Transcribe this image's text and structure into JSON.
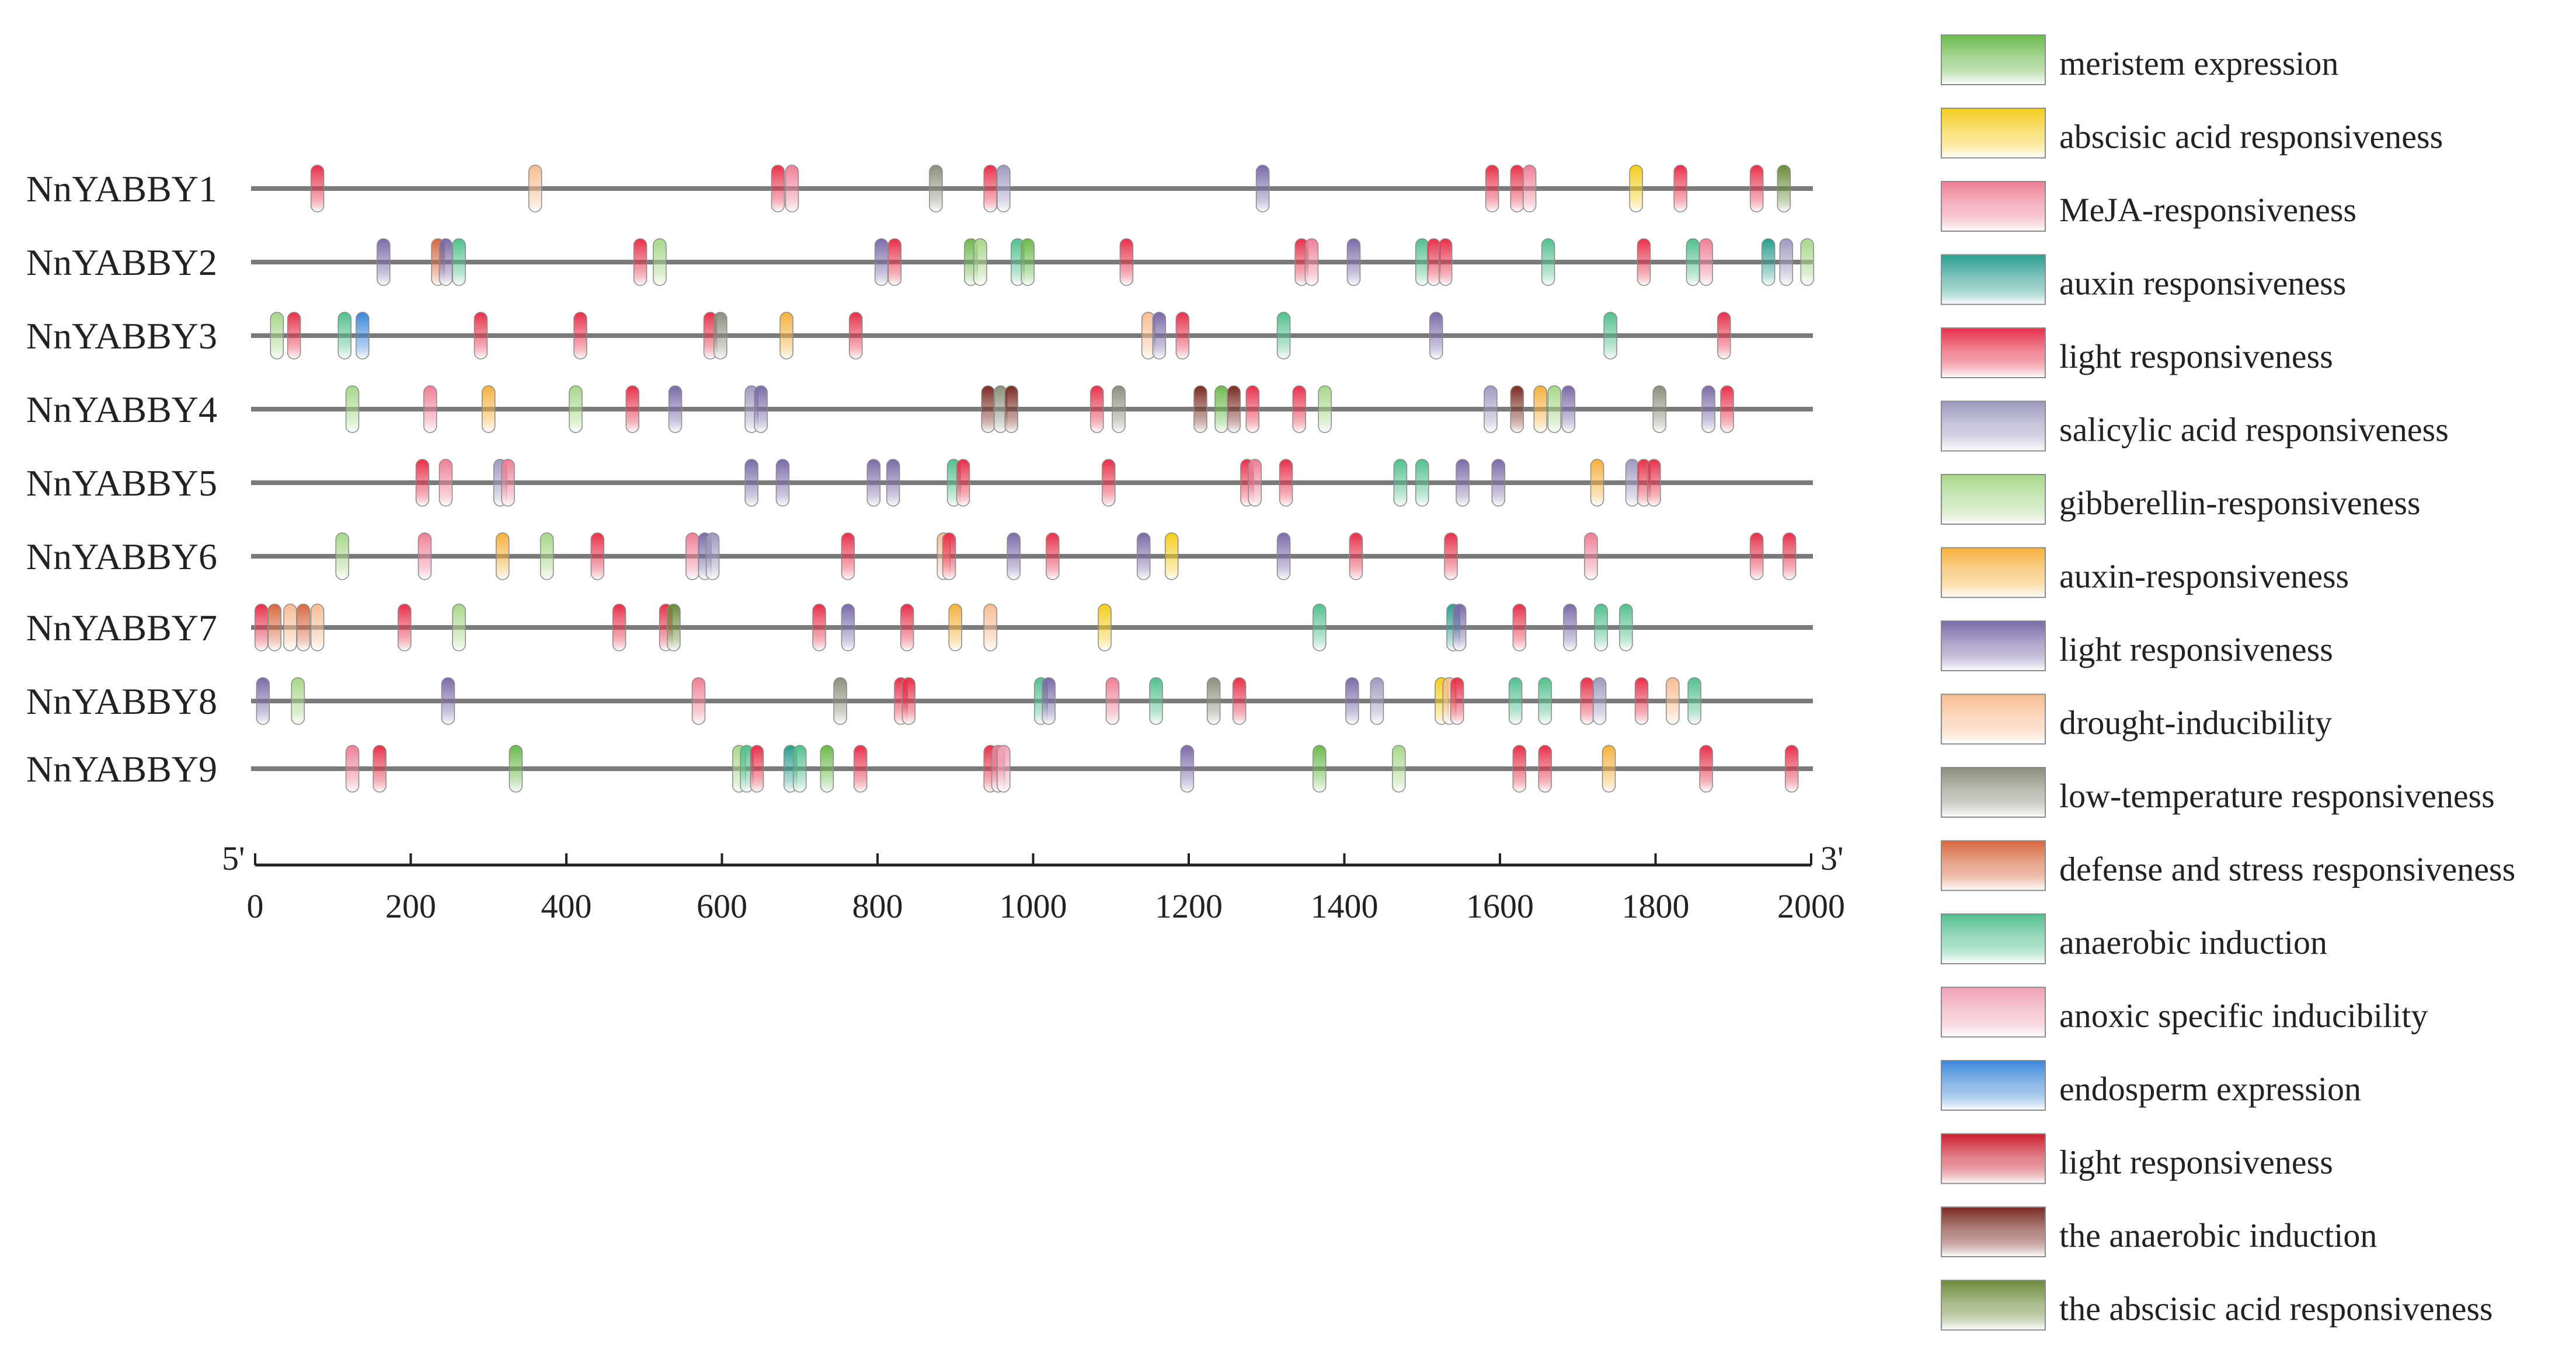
{
  "chart_data": {
    "type": "element-map",
    "title": "",
    "xlabel": "",
    "ylabel": "",
    "xlim": [
      0,
      2000
    ],
    "x_ticks": [
      "0",
      "200",
      "400",
      "600",
      "800",
      "1000",
      "1200",
      "1400",
      "1600",
      "1800",
      "2000"
    ],
    "axis_start_label": "5'",
    "axis_end_label": "3'",
    "legend_position": "right",
    "legend": [
      {
        "key": "meristem",
        "label": "meristem expression",
        "color": "#6cba4c"
      },
      {
        "key": "aba",
        "label": "abscisic acid responsiveness",
        "color": "#f5cd1c"
      },
      {
        "key": "meja",
        "label": "MeJA-responsiveness",
        "color": "#ef7f96"
      },
      {
        "key": "auxin",
        "label": "auxin responsiveness",
        "color": "#2a9d8f"
      },
      {
        "key": "light1",
        "label": "light responsiveness",
        "color": "#e8304a"
      },
      {
        "key": "sa",
        "label": "salicylic acid responsiveness",
        "color": "#9e9ac0"
      },
      {
        "key": "ga",
        "label": "gibberellin-responsiveness",
        "color": "#a8d78a"
      },
      {
        "key": "auxin2",
        "label": "auxin-responsiveness",
        "color": "#f6b13e"
      },
      {
        "key": "light2",
        "label": "light responsiveness",
        "color": "#7a6aa8"
      },
      {
        "key": "drought",
        "label": "drought-inducibility",
        "color": "#f8bd92"
      },
      {
        "key": "lowtemp",
        "label": "low-temperature responsiveness",
        "color": "#8b8f7c"
      },
      {
        "key": "defense",
        "label": "defense and stress responsiveness",
        "color": "#d8683f"
      },
      {
        "key": "anaerobic",
        "label": "anaerobic induction",
        "color": "#52c08e"
      },
      {
        "key": "anoxic",
        "label": "anoxic specific inducibility",
        "color": "#f1a1b6"
      },
      {
        "key": "endosperm",
        "label": "endosperm expression",
        "color": "#3a86d9"
      },
      {
        "key": "light3",
        "label": "light responsiveness",
        "color": "#cc1f30"
      },
      {
        "key": "anaerobic2",
        "label": "the anaerobic induction",
        "color": "#7a2a22"
      },
      {
        "key": "aba2",
        "label": "the abscisic acid responsiveness",
        "color": "#6b8a3a"
      }
    ],
    "series": [
      {
        "name": "NnYABBY1",
        "elements": [
          {
            "pos": 80,
            "type": "light1"
          },
          {
            "pos": 360,
            "type": "drought"
          },
          {
            "pos": 672,
            "type": "light1"
          },
          {
            "pos": 690,
            "type": "meja"
          },
          {
            "pos": 875,
            "type": "lowtemp"
          },
          {
            "pos": 945,
            "type": "light1"
          },
          {
            "pos": 962,
            "type": "sa"
          },
          {
            "pos": 1295,
            "type": "light2"
          },
          {
            "pos": 1590,
            "type": "light1"
          },
          {
            "pos": 1622,
            "type": "light1"
          },
          {
            "pos": 1638,
            "type": "meja"
          },
          {
            "pos": 1775,
            "type": "aba"
          },
          {
            "pos": 1832,
            "type": "light1"
          },
          {
            "pos": 1930,
            "type": "light1"
          },
          {
            "pos": 1965,
            "type": "aba2"
          }
        ]
      },
      {
        "name": "NnYABBY2",
        "elements": [
          {
            "pos": 165,
            "type": "light2"
          },
          {
            "pos": 235,
            "type": "defense"
          },
          {
            "pos": 245,
            "type": "light2"
          },
          {
            "pos": 262,
            "type": "anaerobic"
          },
          {
            "pos": 495,
            "type": "light1"
          },
          {
            "pos": 520,
            "type": "ga"
          },
          {
            "pos": 805,
            "type": "light2"
          },
          {
            "pos": 822,
            "type": "light1"
          },
          {
            "pos": 920,
            "type": "meristem"
          },
          {
            "pos": 932,
            "type": "ga"
          },
          {
            "pos": 980,
            "type": "anaerobic"
          },
          {
            "pos": 993,
            "type": "meristem"
          },
          {
            "pos": 1120,
            "type": "light1"
          },
          {
            "pos": 1345,
            "type": "light1"
          },
          {
            "pos": 1358,
            "type": "meja"
          },
          {
            "pos": 1412,
            "type": "light2"
          },
          {
            "pos": 1500,
            "type": "anaerobic"
          },
          {
            "pos": 1515,
            "type": "light1"
          },
          {
            "pos": 1530,
            "type": "light1"
          },
          {
            "pos": 1662,
            "type": "anaerobic"
          },
          {
            "pos": 1785,
            "type": "light1"
          },
          {
            "pos": 1848,
            "type": "anaerobic"
          },
          {
            "pos": 1865,
            "type": "meja"
          },
          {
            "pos": 1945,
            "type": "auxin"
          },
          {
            "pos": 1968,
            "type": "sa"
          },
          {
            "pos": 1995,
            "type": "ga"
          }
        ]
      },
      {
        "name": "NnYABBY3",
        "elements": [
          {
            "pos": 28,
            "type": "ga"
          },
          {
            "pos": 50,
            "type": "light1"
          },
          {
            "pos": 115,
            "type": "anaerobic"
          },
          {
            "pos": 138,
            "type": "endosperm"
          },
          {
            "pos": 290,
            "type": "light1"
          },
          {
            "pos": 418,
            "type": "light1"
          },
          {
            "pos": 585,
            "type": "light1"
          },
          {
            "pos": 598,
            "type": "lowtemp"
          },
          {
            "pos": 683,
            "type": "auxin2"
          },
          {
            "pos": 772,
            "type": "light1"
          },
          {
            "pos": 1148,
            "type": "drought"
          },
          {
            "pos": 1162,
            "type": "light2"
          },
          {
            "pos": 1192,
            "type": "light1"
          },
          {
            "pos": 1322,
            "type": "anaerobic"
          },
          {
            "pos": 1518,
            "type": "light2"
          },
          {
            "pos": 1742,
            "type": "anaerobic"
          },
          {
            "pos": 1888,
            "type": "light1"
          }
        ]
      },
      {
        "name": "NnYABBY4",
        "elements": [
          {
            "pos": 125,
            "type": "ga"
          },
          {
            "pos": 225,
            "type": "meja"
          },
          {
            "pos": 300,
            "type": "auxin2"
          },
          {
            "pos": 412,
            "type": "ga"
          },
          {
            "pos": 485,
            "type": "light1"
          },
          {
            "pos": 540,
            "type": "light2"
          },
          {
            "pos": 638,
            "type": "sa"
          },
          {
            "pos": 650,
            "type": "light2"
          },
          {
            "pos": 942,
            "type": "anaerobic2"
          },
          {
            "pos": 958,
            "type": "lowtemp"
          },
          {
            "pos": 972,
            "type": "anaerobic2"
          },
          {
            "pos": 1082,
            "type": "light1"
          },
          {
            "pos": 1110,
            "type": "lowtemp"
          },
          {
            "pos": 1215,
            "type": "anaerobic2"
          },
          {
            "pos": 1242,
            "type": "meristem"
          },
          {
            "pos": 1258,
            "type": "anaerobic2"
          },
          {
            "pos": 1282,
            "type": "light1"
          },
          {
            "pos": 1342,
            "type": "light1"
          },
          {
            "pos": 1375,
            "type": "ga"
          },
          {
            "pos": 1588,
            "type": "sa"
          },
          {
            "pos": 1622,
            "type": "anaerobic2"
          },
          {
            "pos": 1652,
            "type": "auxin2"
          },
          {
            "pos": 1670,
            "type": "ga"
          },
          {
            "pos": 1688,
            "type": "light2"
          },
          {
            "pos": 1805,
            "type": "lowtemp"
          },
          {
            "pos": 1868,
            "type": "light2"
          },
          {
            "pos": 1892,
            "type": "light1"
          }
        ]
      },
      {
        "name": "NnYABBY5",
        "elements": [
          {
            "pos": 215,
            "type": "light1"
          },
          {
            "pos": 245,
            "type": "meja"
          },
          {
            "pos": 315,
            "type": "sa"
          },
          {
            "pos": 325,
            "type": "meja"
          },
          {
            "pos": 638,
            "type": "light2"
          },
          {
            "pos": 678,
            "type": "light2"
          },
          {
            "pos": 795,
            "type": "light2"
          },
          {
            "pos": 820,
            "type": "light2"
          },
          {
            "pos": 898,
            "type": "anaerobic"
          },
          {
            "pos": 910,
            "type": "light1"
          },
          {
            "pos": 1097,
            "type": "light1"
          },
          {
            "pos": 1275,
            "type": "light1"
          },
          {
            "pos": 1285,
            "type": "meja"
          },
          {
            "pos": 1325,
            "type": "light1"
          },
          {
            "pos": 1472,
            "type": "anaerobic"
          },
          {
            "pos": 1500,
            "type": "anaerobic"
          },
          {
            "pos": 1552,
            "type": "light2"
          },
          {
            "pos": 1598,
            "type": "light2"
          },
          {
            "pos": 1725,
            "type": "auxin2"
          },
          {
            "pos": 1770,
            "type": "sa"
          },
          {
            "pos": 1785,
            "type": "light1"
          },
          {
            "pos": 1798,
            "type": "light1"
          }
        ]
      },
      {
        "name": "NnYABBY6",
        "elements": [
          {
            "pos": 112,
            "type": "ga"
          },
          {
            "pos": 218,
            "type": "meja"
          },
          {
            "pos": 318,
            "type": "auxin2"
          },
          {
            "pos": 375,
            "type": "ga"
          },
          {
            "pos": 440,
            "type": "light1"
          },
          {
            "pos": 562,
            "type": "meja"
          },
          {
            "pos": 578,
            "type": "light2"
          },
          {
            "pos": 588,
            "type": "sa"
          },
          {
            "pos": 762,
            "type": "light1"
          },
          {
            "pos": 885,
            "type": "drought"
          },
          {
            "pos": 892,
            "type": "light1"
          },
          {
            "pos": 975,
            "type": "light2"
          },
          {
            "pos": 1025,
            "type": "light1"
          },
          {
            "pos": 1142,
            "type": "light2"
          },
          {
            "pos": 1178,
            "type": "aba"
          },
          {
            "pos": 1322,
            "type": "light2"
          },
          {
            "pos": 1415,
            "type": "light1"
          },
          {
            "pos": 1537,
            "type": "light1"
          },
          {
            "pos": 1717,
            "type": "meja"
          },
          {
            "pos": 1930,
            "type": "light1"
          },
          {
            "pos": 1972,
            "type": "light1"
          }
        ]
      },
      {
        "name": "NnYABBY7",
        "elements": [
          {
            "pos": 8,
            "type": "light1"
          },
          {
            "pos": 25,
            "type": "defense"
          },
          {
            "pos": 45,
            "type": "drought"
          },
          {
            "pos": 62,
            "type": "defense"
          },
          {
            "pos": 80,
            "type": "drought"
          },
          {
            "pos": 192,
            "type": "light1"
          },
          {
            "pos": 262,
            "type": "ga"
          },
          {
            "pos": 468,
            "type": "light1"
          },
          {
            "pos": 528,
            "type": "light1"
          },
          {
            "pos": 538,
            "type": "aba2"
          },
          {
            "pos": 725,
            "type": "light1"
          },
          {
            "pos": 762,
            "type": "light2"
          },
          {
            "pos": 838,
            "type": "light1"
          },
          {
            "pos": 900,
            "type": "auxin2"
          },
          {
            "pos": 945,
            "type": "drought"
          },
          {
            "pos": 1092,
            "type": "aba"
          },
          {
            "pos": 1368,
            "type": "anaerobic"
          },
          {
            "pos": 1540,
            "type": "auxin"
          },
          {
            "pos": 1548,
            "type": "light2"
          },
          {
            "pos": 1625,
            "type": "light1"
          },
          {
            "pos": 1690,
            "type": "light2"
          },
          {
            "pos": 1730,
            "type": "anaerobic"
          },
          {
            "pos": 1762,
            "type": "anaerobic"
          }
        ]
      },
      {
        "name": "NnYABBY8",
        "elements": [
          {
            "pos": 10,
            "type": "light2"
          },
          {
            "pos": 55,
            "type": "ga"
          },
          {
            "pos": 248,
            "type": "light2"
          },
          {
            "pos": 570,
            "type": "meja"
          },
          {
            "pos": 752,
            "type": "lowtemp"
          },
          {
            "pos": 830,
            "type": "light1"
          },
          {
            "pos": 840,
            "type": "light1"
          },
          {
            "pos": 1010,
            "type": "anaerobic"
          },
          {
            "pos": 1020,
            "type": "light2"
          },
          {
            "pos": 1102,
            "type": "meja"
          },
          {
            "pos": 1158,
            "type": "anaerobic"
          },
          {
            "pos": 1232,
            "type": "lowtemp"
          },
          {
            "pos": 1265,
            "type": "light1"
          },
          {
            "pos": 1410,
            "type": "light2"
          },
          {
            "pos": 1442,
            "type": "sa"
          },
          {
            "pos": 1525,
            "type": "aba"
          },
          {
            "pos": 1535,
            "type": "drought"
          },
          {
            "pos": 1545,
            "type": "light1"
          },
          {
            "pos": 1620,
            "type": "anaerobic"
          },
          {
            "pos": 1658,
            "type": "anaerobic"
          },
          {
            "pos": 1712,
            "type": "light1"
          },
          {
            "pos": 1728,
            "type": "sa"
          },
          {
            "pos": 1782,
            "type": "light1"
          },
          {
            "pos": 1822,
            "type": "drought"
          },
          {
            "pos": 1850,
            "type": "anaerobic"
          }
        ]
      },
      {
        "name": "NnYABBY9",
        "elements": [
          {
            "pos": 125,
            "type": "meja"
          },
          {
            "pos": 160,
            "type": "light1"
          },
          {
            "pos": 335,
            "type": "meristem"
          },
          {
            "pos": 622,
            "type": "ga"
          },
          {
            "pos": 632,
            "type": "anaerobic"
          },
          {
            "pos": 645,
            "type": "light1"
          },
          {
            "pos": 688,
            "type": "auxin"
          },
          {
            "pos": 700,
            "type": "anaerobic"
          },
          {
            "pos": 735,
            "type": "meristem"
          },
          {
            "pos": 778,
            "type": "light1"
          },
          {
            "pos": 945,
            "type": "light1"
          },
          {
            "pos": 955,
            "type": "meja"
          },
          {
            "pos": 962,
            "type": "anoxic"
          },
          {
            "pos": 1198,
            "type": "light2"
          },
          {
            "pos": 1368,
            "type": "meristem"
          },
          {
            "pos": 1470,
            "type": "ga"
          },
          {
            "pos": 1625,
            "type": "light1"
          },
          {
            "pos": 1658,
            "type": "light1"
          },
          {
            "pos": 1740,
            "type": "auxin2"
          },
          {
            "pos": 1865,
            "type": "light1"
          },
          {
            "pos": 1975,
            "type": "light1"
          }
        ]
      }
    ]
  }
}
